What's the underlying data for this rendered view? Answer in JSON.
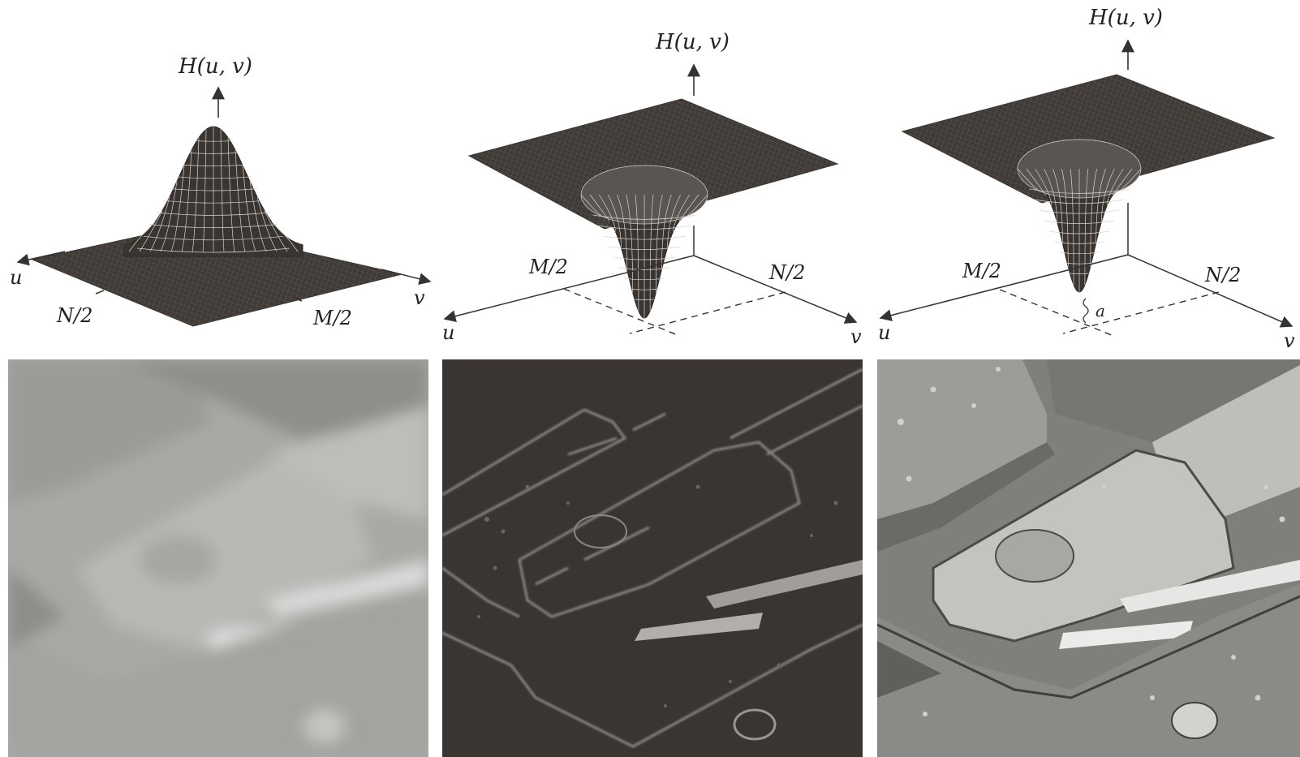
{
  "panels": [
    {
      "id": "gaussian-lowpass",
      "top_label": "H(u, v)",
      "axis_left": "u",
      "axis_right": "v",
      "half_left": "N/2",
      "half_right": "M/2"
    },
    {
      "id": "gaussian-highpass",
      "top_label": "H(u, v)",
      "axis_left": "u",
      "axis_right": "v",
      "half_left": "M/2",
      "half_right": "N/2"
    },
    {
      "id": "high-frequency-emphasis",
      "top_label": "H(u, v)",
      "axis_left": "u",
      "axis_right": "v",
      "half_left": "M/2",
      "half_right": "N/2",
      "offset_label": "a"
    }
  ],
  "images": [
    {
      "id": "lowpass-result",
      "tone": "light gray, blurred"
    },
    {
      "id": "highpass-result",
      "tone": "dark gray, edges only"
    },
    {
      "id": "emphasis-result",
      "tone": "gray, sharpened"
    }
  ],
  "colors": {
    "surface_fill": "#3f3a36",
    "mesh_line": "#d8d4cf",
    "axis_line": "#333333",
    "background": "#ffffff",
    "lowpass_img_base": "#a9aaa6",
    "highpass_img_base": "#3b3632",
    "emphasis_img_base": "#8a8b87"
  }
}
